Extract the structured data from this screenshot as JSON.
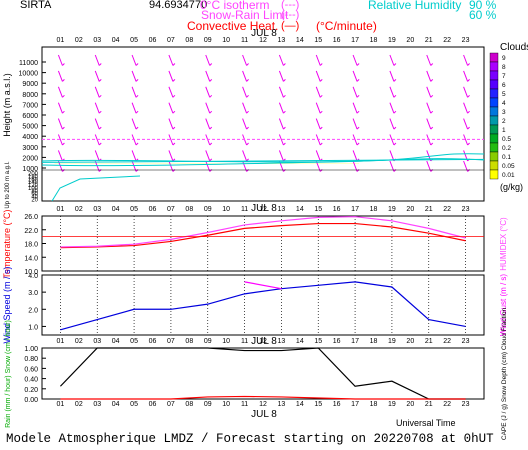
{
  "header": {
    "station": "SIRTA",
    "coords": "94.69347",
    "code_suffix": "70",
    "isotherm": "0°C isotherm",
    "isotherm_key": "(---)",
    "snow_rain": "Snow-Rain Limit",
    "snow_rain_key": "(---)",
    "convective": "Convective Heat.",
    "convective_key": "(—)",
    "convective_unit": "(°C/minute)",
    "rh_label": "Relative Humidity",
    "rh_90": "90 %",
    "rh_60": "60 %"
  },
  "axes": {
    "hours": [
      "01",
      "02",
      "03",
      "04",
      "05",
      "06",
      "07",
      "08",
      "09",
      "10",
      "11",
      "12",
      "13",
      "14",
      "15",
      "16",
      "17",
      "18",
      "19",
      "20",
      "21",
      "22",
      "23"
    ],
    "date_label": "JUL  8",
    "universal_time": "Universal Time"
  },
  "colors": {
    "isotherm": "#ff44ff",
    "snow_rain": "#ff44ff",
    "convective": "#ff0000",
    "humidity": "#00cccc",
    "wind": "#ee00ee",
    "temperature": "#ff0000",
    "humidex": "#ff44ff",
    "wind_speed": "#0000dd",
    "wind_gust": "#ff00ff",
    "rain": "#000000",
    "cape": "#ff0000"
  },
  "footer": "Modele Atmospherique LMDZ / Forecast starting on 20220708 at 0hUT",
  "chart_data": [
    {
      "type": "heatmap",
      "title": "",
      "ylabel": "Height (m a.s.l.)",
      "ylabel_small": "Up to 200 m a.g.l.",
      "yticks": [
        "11000",
        "10000",
        "9000",
        "8000",
        "7000",
        "6000",
        "5000",
        "4000",
        "3000",
        "2000",
        "1000",
        "200",
        "180",
        "160",
        "140",
        "120",
        "100",
        "80",
        "60",
        "40",
        "20"
      ],
      "colorbar": {
        "title": "Clouds",
        "unit": "(g/kg)",
        "labels": [
          "9",
          "8",
          "7",
          "6",
          "5",
          "4",
          "3",
          "2",
          "1",
          "0.5",
          "0.2",
          "0.1",
          "0.05",
          "0.01"
        ],
        "colors": [
          "#cc00cc",
          "#aa00ff",
          "#7a00ff",
          "#5500ff",
          "#2222ff",
          "#0044ff",
          "#0077dd",
          "#0099aa",
          "#009955",
          "#00aa22",
          "#22bb11",
          "#88cc00",
          "#ccdd00",
          "#ffff00"
        ]
      },
      "isotherm_height_m": 3700,
      "wind_arrow_rows_m": [
        11000,
        9500,
        8000,
        6500,
        5000,
        3500,
        2000,
        1000
      ],
      "cloud_layer_m": [
        1000,
        2000
      ]
    },
    {
      "type": "line",
      "title": "",
      "ylabel": "Temperature (°C)",
      "y2label": "HUMIDEX (°C)",
      "yticks": [
        "26.0",
        "22.0",
        "18.0",
        "14.0",
        "10.0"
      ],
      "ylim": [
        10,
        26
      ],
      "x": [
        1,
        3,
        5,
        7,
        9,
        11,
        13,
        15,
        17,
        19,
        21,
        23
      ],
      "series": [
        {
          "name": "Temperature",
          "values": [
            16.8,
            17.0,
            17.4,
            18.6,
            20.4,
            22.4,
            23.2,
            23.8,
            23.8,
            22.8,
            21.0,
            18.8
          ]
        },
        {
          "name": "HUMIDEX",
          "values": [
            17.0,
            17.2,
            17.8,
            19.2,
            21.2,
            23.4,
            24.6,
            25.6,
            25.8,
            24.6,
            22.4,
            19.6
          ]
        }
      ]
    },
    {
      "type": "line",
      "title": "",
      "ylabel": "Wind Speed (m / s)",
      "y2label": "Wind Gust (m / s)",
      "yticks": [
        "4.0",
        "3.0",
        "2.0",
        "1.0"
      ],
      "ylim": [
        0.5,
        4.0
      ],
      "x": [
        1,
        3,
        5,
        7,
        9,
        11,
        13,
        15,
        17,
        19,
        21,
        23
      ],
      "series": [
        {
          "name": "Wind Speed",
          "values": [
            0.8,
            1.4,
            2.0,
            2.0,
            2.3,
            2.9,
            3.2,
            3.4,
            3.6,
            3.3,
            1.4,
            1.0
          ]
        },
        {
          "name": "Wind Gust",
          "values": [
            null,
            null,
            null,
            null,
            null,
            3.6,
            3.2,
            null,
            null,
            null,
            null,
            null
          ]
        }
      ]
    },
    {
      "type": "line",
      "title": "",
      "ylabel": "Rain (mm / hour) Snow (cm / hour)",
      "y2label": "CAPE (J / g) Snow Depth (cm) Cloud Fraction",
      "yticks": [
        "1.00",
        "0.80",
        "0.60",
        "0.40",
        "0.20",
        "0.00"
      ],
      "ylim": [
        0,
        1
      ],
      "x": [
        1,
        3,
        5,
        7,
        9,
        11,
        13,
        15,
        17,
        19,
        21,
        23
      ],
      "series": [
        {
          "name": "Cloud Fraction",
          "values": [
            0.25,
            1.0,
            1.0,
            1.0,
            1.0,
            0.95,
            0.95,
            1.0,
            0.25,
            0.35,
            0.0,
            0.0
          ]
        },
        {
          "name": "CAPE",
          "values": [
            0,
            0,
            0,
            0,
            0.04,
            0.05,
            0.04,
            0.02,
            0,
            0,
            0,
            0
          ]
        }
      ]
    }
  ]
}
